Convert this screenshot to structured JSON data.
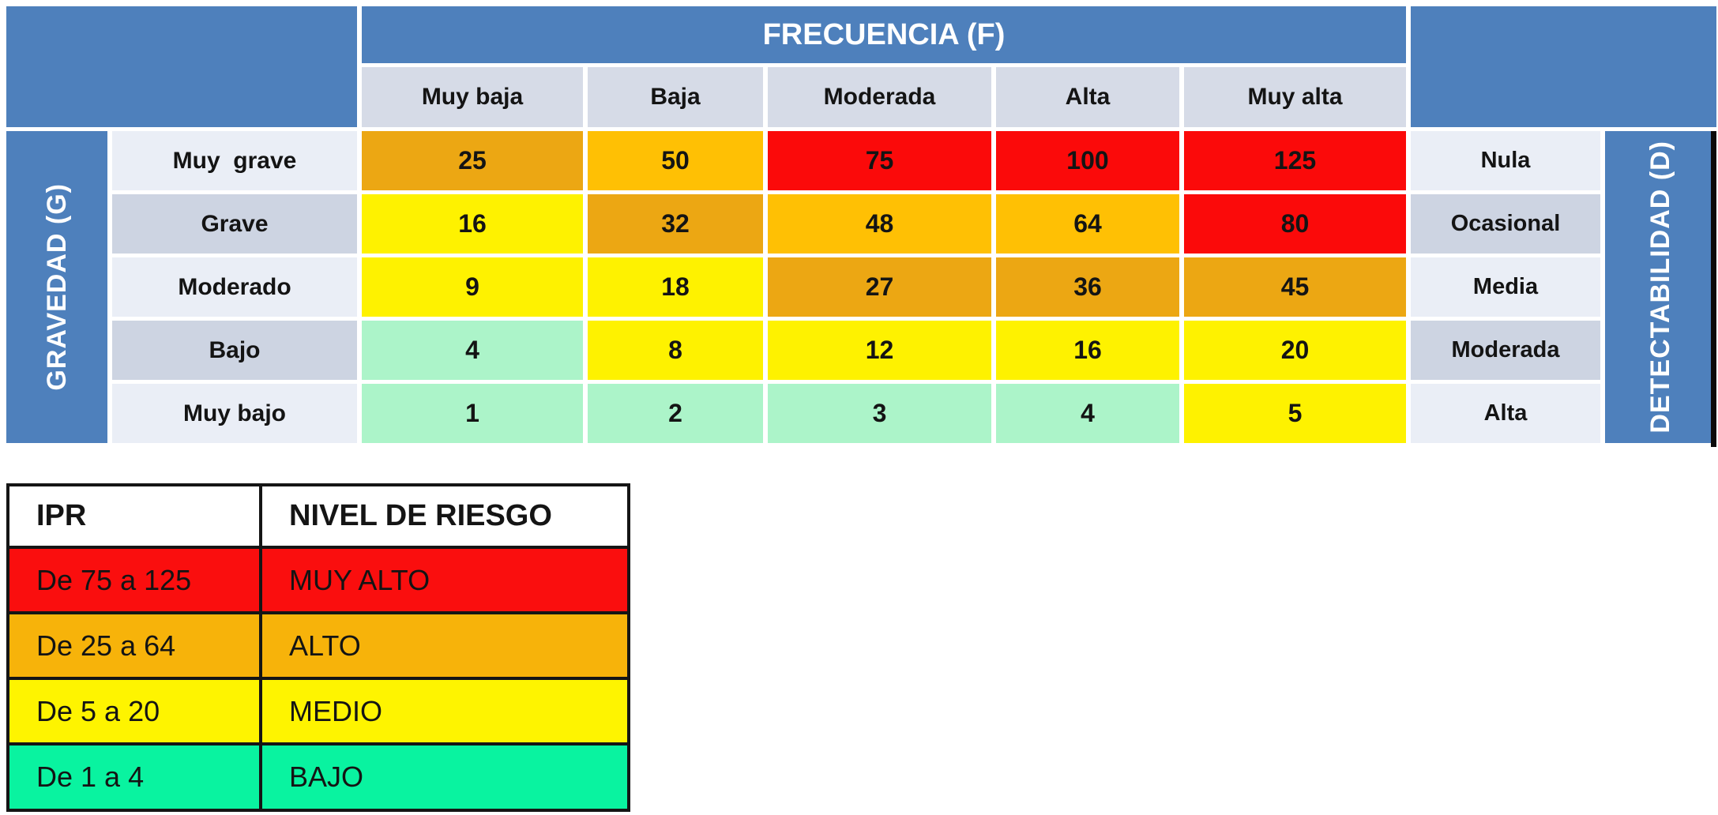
{
  "colors": {
    "header_blue": "#4E80BC",
    "column_header_bg": "#D6DBE7",
    "row_label_light": "#EAEEF6",
    "row_label_dark": "#CDD4E2",
    "risk_red": "#FB0A0A",
    "risk_orange": "#FFC004",
    "risk_amber": "#ECA713",
    "risk_yellow": "#FEF200",
    "risk_mint": "#ACF4C9",
    "legend_red": "#FA0E0E",
    "legend_orange": "#F7B30A",
    "legend_yellow": "#FEF400",
    "legend_green": "#09F3A0"
  },
  "matrix": {
    "frequency_title": "FRECUENCIA (F)",
    "gravity_title": "GRAVEDAD (G)",
    "detectability_title": "DETECTABILIDAD (D)",
    "frequency_headers": [
      "Muy baja",
      "Baja",
      "Moderada",
      "Alta",
      "Muy alta"
    ],
    "rows": [
      {
        "gravity": "Muy  grave",
        "detect": "Nula",
        "cells": [
          {
            "v": "25",
            "bg": "#ECA713"
          },
          {
            "v": "50",
            "bg": "#FFC004"
          },
          {
            "v": "75",
            "bg": "#FB0A0A"
          },
          {
            "v": "100",
            "bg": "#FB0A0A"
          },
          {
            "v": "125",
            "bg": "#FB0A0A"
          }
        ]
      },
      {
        "gravity": "Grave",
        "detect": "Ocasional",
        "cells": [
          {
            "v": "16",
            "bg": "#FEF200"
          },
          {
            "v": "32",
            "bg": "#ECA713"
          },
          {
            "v": "48",
            "bg": "#FFC004"
          },
          {
            "v": "64",
            "bg": "#FFC004"
          },
          {
            "v": "80",
            "bg": "#FB0A0A"
          }
        ]
      },
      {
        "gravity": "Moderado",
        "detect": "Media",
        "cells": [
          {
            "v": "9",
            "bg": "#FEF200"
          },
          {
            "v": "18",
            "bg": "#FEF200"
          },
          {
            "v": "27",
            "bg": "#ECA713"
          },
          {
            "v": "36",
            "bg": "#ECA713"
          },
          {
            "v": "45",
            "bg": "#ECA713"
          }
        ]
      },
      {
        "gravity": "Bajo",
        "detect": "Moderada",
        "cells": [
          {
            "v": "4",
            "bg": "#ACF4C9"
          },
          {
            "v": "8",
            "bg": "#FEF200"
          },
          {
            "v": "12",
            "bg": "#FEF200"
          },
          {
            "v": "16",
            "bg": "#FEF200"
          },
          {
            "v": "20",
            "bg": "#FEF200"
          }
        ]
      },
      {
        "gravity": "Muy bajo",
        "detect": "Alta",
        "cells": [
          {
            "v": "1",
            "bg": "#ACF4C9"
          },
          {
            "v": "2",
            "bg": "#ACF4C9"
          },
          {
            "v": "3",
            "bg": "#ACF4C9"
          },
          {
            "v": "4",
            "bg": "#ACF4C9"
          },
          {
            "v": "5",
            "bg": "#FEF200"
          }
        ]
      }
    ]
  },
  "legend": {
    "headers": [
      "IPR",
      "NIVEL DE RIESGO"
    ],
    "rows": [
      {
        "ipr": "De 75 a 125",
        "nivel": "MUY ALTO",
        "bg": "#FA0E0E"
      },
      {
        "ipr": "De 25 a 64",
        "nivel": "ALTO",
        "bg": "#F7B30A"
      },
      {
        "ipr": "De 5 a 20",
        "nivel": "MEDIO",
        "bg": "#FEF400"
      },
      {
        "ipr": "De 1 a 4",
        "nivel": "BAJO",
        "bg": "#09F3A0"
      }
    ]
  },
  "chart_data": [
    {
      "type": "heatmap",
      "title": "FRECUENCIA (F)",
      "xlabel": "FRECUENCIA (F)",
      "ylabel": "GRAVEDAD (G)",
      "secondary_axis_label": "DETECTABILIDAD (D)",
      "columns": [
        "Muy baja",
        "Baja",
        "Moderada",
        "Alta",
        "Muy alta"
      ],
      "rows": [
        "Muy grave",
        "Grave",
        "Moderado",
        "Bajo",
        "Muy bajo"
      ],
      "detectability_labels": [
        "Nula",
        "Ocasional",
        "Media",
        "Moderada",
        "Alta"
      ],
      "values": [
        [
          25,
          50,
          75,
          100,
          125
        ],
        [
          16,
          32,
          48,
          64,
          80
        ],
        [
          9,
          18,
          27,
          36,
          45
        ],
        [
          4,
          8,
          12,
          16,
          20
        ],
        [
          1,
          2,
          3,
          4,
          5
        ]
      ],
      "legend_position": "bottom-left",
      "grid": false
    },
    {
      "type": "table",
      "headers": [
        "IPR",
        "NIVEL DE RIESGO"
      ],
      "rows": [
        [
          "De 75 a 125",
          "MUY ALTO"
        ],
        [
          "De 25 a 64",
          "ALTO"
        ],
        [
          "De 5 a 20",
          "MEDIO"
        ],
        [
          "De 1 a 4",
          "BAJO"
        ]
      ]
    }
  ]
}
